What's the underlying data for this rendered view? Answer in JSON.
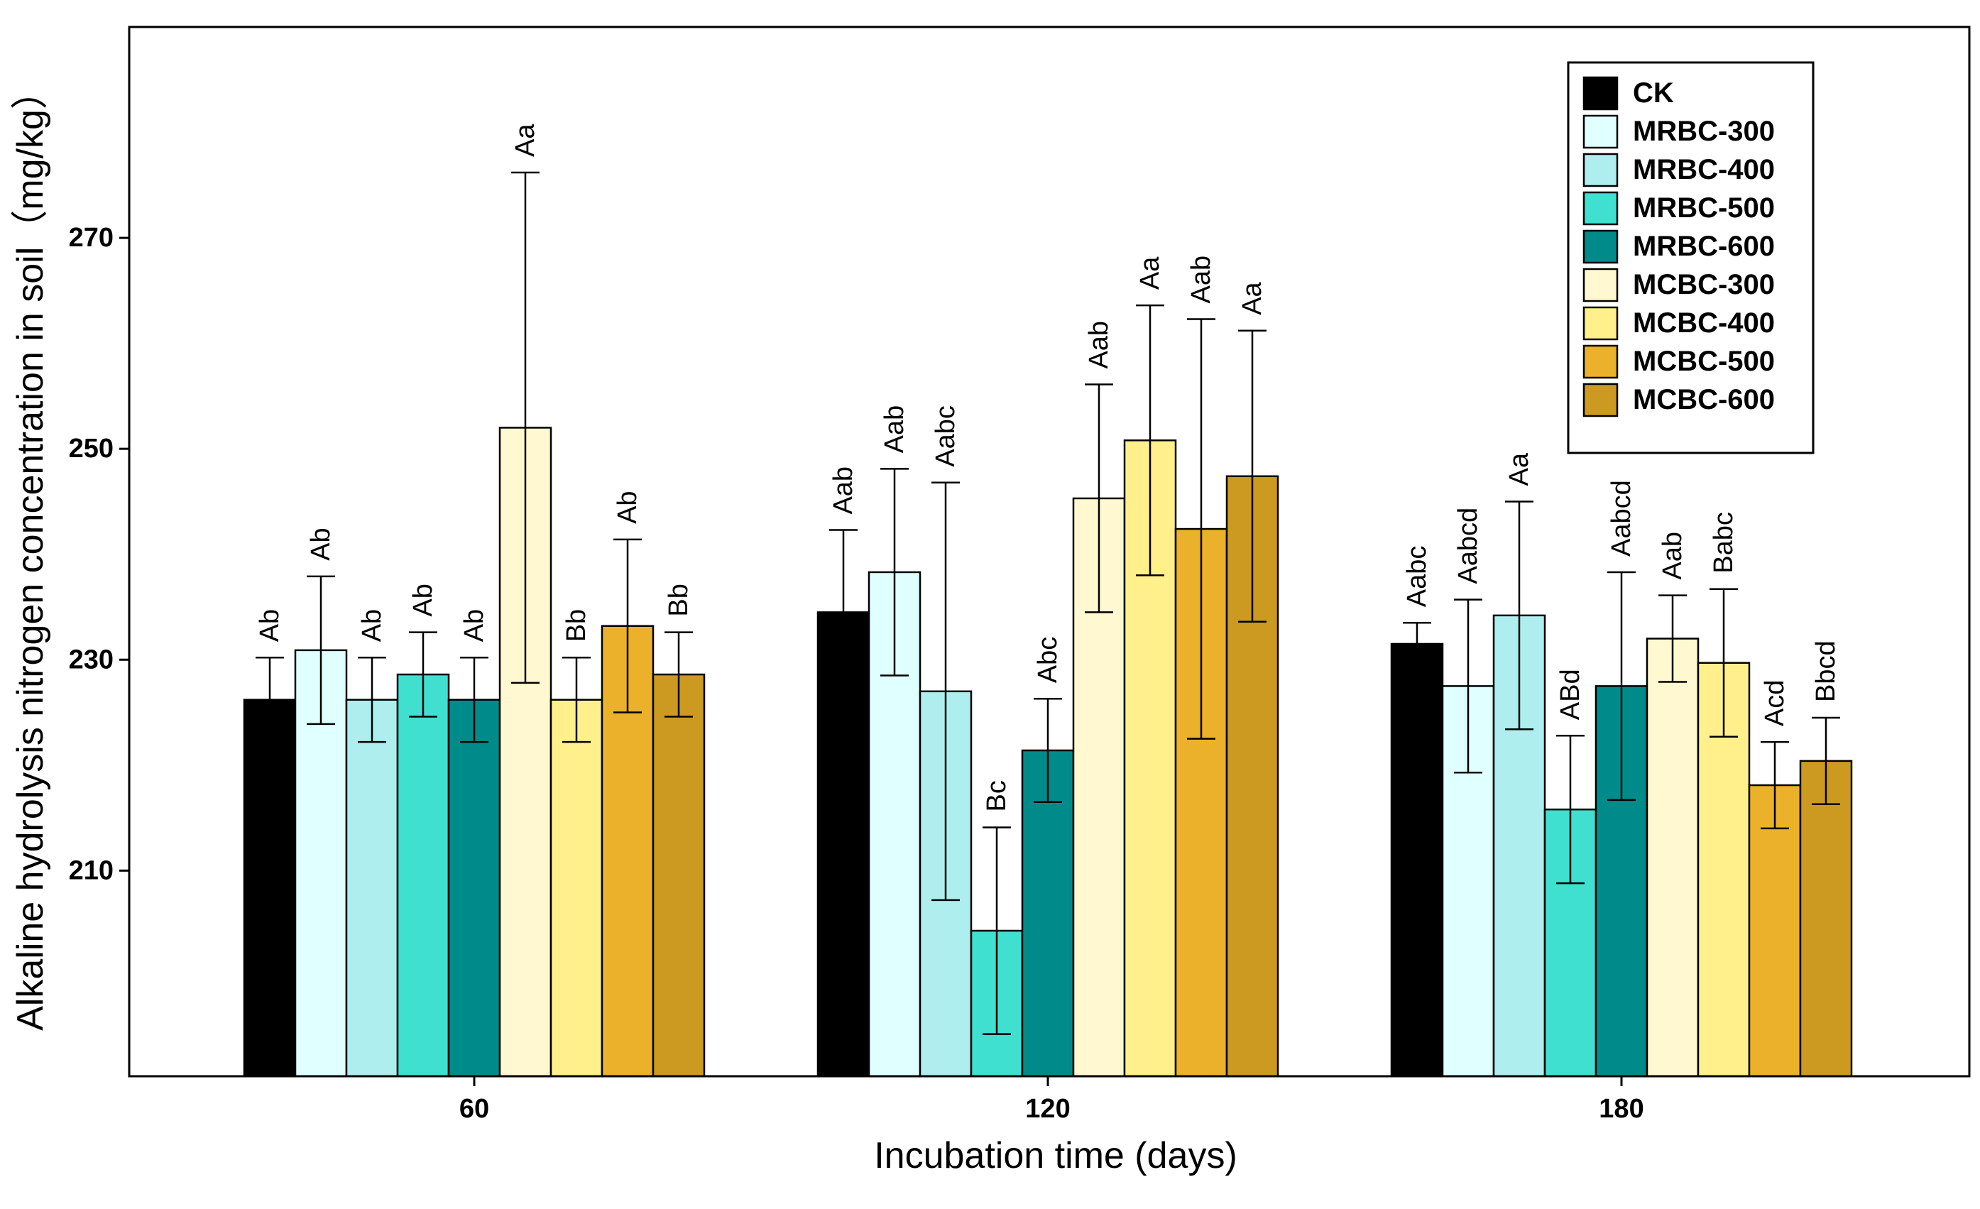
{
  "chart_data": {
    "type": "bar",
    "title": "",
    "xlabel": "Incubation time (days)",
    "ylabel": "Alkaline hydrolysis nitrogen concentration in soil（mg/kg）",
    "categories": [
      "60",
      "120",
      "180"
    ],
    "ylim": [
      190.5,
      290
    ],
    "yticks": [
      210,
      230,
      250,
      270
    ],
    "grid": false,
    "legend_position": "top-right",
    "series": [
      {
        "name": "CK",
        "color": "#000000",
        "values": [
          226.2,
          234.5,
          231.5
        ],
        "errors": [
          4.0,
          7.8,
          2.0
        ],
        "labels": [
          "Ab",
          "Aab",
          "Aabc"
        ]
      },
      {
        "name": "MRBC-300",
        "color": "#e0ffff",
        "values": [
          230.9,
          238.3,
          227.5
        ],
        "errors": [
          7.0,
          9.8,
          8.2
        ],
        "labels": [
          "Ab",
          "Aab",
          "Aabcd"
        ]
      },
      {
        "name": "MRBC-400",
        "color": "#afeeee",
        "values": [
          226.2,
          227.0,
          234.2
        ],
        "errors": [
          4.0,
          19.8,
          10.8
        ],
        "labels": [
          "Ab",
          "Aabc",
          "Aa"
        ]
      },
      {
        "name": "MRBC-500",
        "color": "#40e0d0",
        "values": [
          228.6,
          204.3,
          215.8
        ],
        "errors": [
          4.0,
          9.8,
          7.0
        ],
        "labels": [
          "Ab",
          "Bc",
          "ABd"
        ]
      },
      {
        "name": "MRBC-600",
        "color": "#008b8b",
        "values": [
          226.2,
          221.4,
          227.5
        ],
        "errors": [
          4.0,
          4.9,
          10.8
        ],
        "labels": [
          "Ab",
          "Abc",
          "Aabcd"
        ]
      },
      {
        "name": "MCBC-300",
        "color": "#fff8d0",
        "values": [
          252.0,
          245.3,
          232.0
        ],
        "errors": [
          24.2,
          10.8,
          4.1
        ],
        "labels": [
          "Aa",
          "Aab",
          "Aab"
        ]
      },
      {
        "name": "MCBC-400",
        "color": "#fff08c",
        "values": [
          226.2,
          250.8,
          229.7
        ],
        "errors": [
          4.0,
          12.8,
          7.0
        ],
        "labels": [
          "Bb",
          "Aa",
          "Babc"
        ]
      },
      {
        "name": "MCBC-500",
        "color": "#ebb12a",
        "values": [
          233.2,
          242.4,
          218.1
        ],
        "errors": [
          8.2,
          19.9,
          4.1
        ],
        "labels": [
          "Ab",
          "Aab",
          "Acd"
        ]
      },
      {
        "name": "MCBC-600",
        "color": "#cc9a20",
        "values": [
          228.6,
          247.4,
          220.4
        ],
        "errors": [
          4.0,
          13.8,
          4.1
        ],
        "labels": [
          "Bb",
          "Aa",
          "Bbcd"
        ]
      }
    ]
  }
}
